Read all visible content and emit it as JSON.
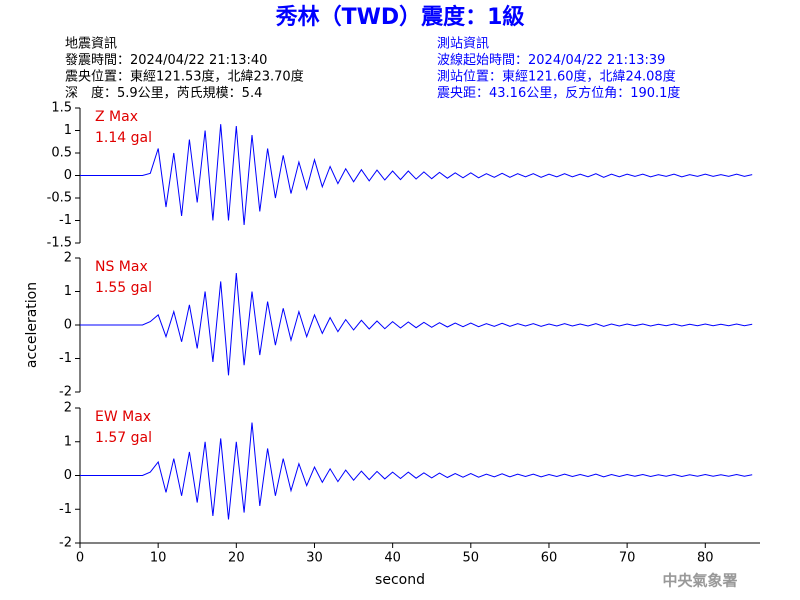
{
  "title": "秀林（TWD）震度：1級",
  "earthquake_info": [
    "地震資訊",
    "發震時間：2024/04/22 21:13:40",
    "震央位置：東經121.53度，北緯23.70度",
    "深　度：5.9公里，芮氏規模：5.4"
  ],
  "station_info": [
    "測站資訊",
    "波線起始時間：2024/04/22 21:13:39",
    "測站位置：東經121.60度，北緯24.08度",
    "震央距：43.16公里，反方位角：190.1度"
  ],
  "footer": "中央氣象署",
  "chart_data": [
    {
      "type": "line",
      "label": "Z Max",
      "max_label": "1.14 gal",
      "color": "#0000ff",
      "xlim": [
        0,
        87
      ],
      "ylim": [
        -1.5,
        1.5
      ],
      "yticks": [
        1.5,
        1,
        0.5,
        0,
        -0.5,
        -1,
        -1.5
      ],
      "x": [
        0,
        1,
        2,
        3,
        4,
        5,
        6,
        7,
        8,
        9,
        10,
        11,
        12,
        13,
        14,
        15,
        16,
        17,
        18,
        19,
        20,
        21,
        22,
        23,
        24,
        25,
        26,
        27,
        28,
        29,
        30,
        31,
        32,
        33,
        34,
        35,
        36,
        37,
        38,
        39,
        40,
        41,
        42,
        43,
        44,
        45,
        46,
        47,
        48,
        49,
        50,
        51,
        52,
        53,
        54,
        55,
        56,
        57,
        58,
        59,
        60,
        61,
        62,
        63,
        64,
        65,
        66,
        67,
        68,
        69,
        70,
        71,
        72,
        73,
        74,
        75,
        76,
        77,
        78,
        79,
        80,
        81,
        82,
        83,
        84,
        85,
        86
      ],
      "values": [
        0,
        0,
        0,
        0,
        0,
        0,
        0,
        0,
        0,
        0.05,
        0.6,
        -0.7,
        0.5,
        -0.9,
        0.8,
        -0.6,
        1.0,
        -1.0,
        1.14,
        -1.0,
        1.1,
        -1.1,
        0.9,
        -0.8,
        0.6,
        -0.5,
        0.45,
        -0.4,
        0.3,
        -0.3,
        0.35,
        -0.25,
        0.2,
        -0.18,
        0.15,
        -0.14,
        0.13,
        -0.12,
        0.12,
        -0.1,
        0.1,
        -0.09,
        0.1,
        -0.08,
        0.08,
        -0.07,
        0.07,
        -0.06,
        0.06,
        -0.05,
        0.06,
        -0.05,
        0.04,
        -0.04,
        0.05,
        -0.04,
        0.04,
        -0.03,
        0.04,
        -0.04,
        0.03,
        -0.03,
        0.04,
        -0.03,
        0.03,
        -0.03,
        0.04,
        -0.04,
        0.03,
        -0.03,
        0.03,
        -0.02,
        0.03,
        -0.03,
        0.02,
        -0.02,
        0.03,
        -0.03,
        0.02,
        -0.02,
        0.03,
        -0.02,
        0.02,
        -0.02,
        0.03,
        -0.02,
        0.02
      ]
    },
    {
      "type": "line",
      "label": "NS Max",
      "max_label": "1.55 gal",
      "color": "#0000ff",
      "ylabel": "acceleration",
      "xlim": [
        0,
        87
      ],
      "ylim": [
        -2,
        2
      ],
      "yticks": [
        2,
        1,
        0,
        -1,
        -2
      ],
      "x": [
        0,
        1,
        2,
        3,
        4,
        5,
        6,
        7,
        8,
        9,
        10,
        11,
        12,
        13,
        14,
        15,
        16,
        17,
        18,
        19,
        20,
        21,
        22,
        23,
        24,
        25,
        26,
        27,
        28,
        29,
        30,
        31,
        32,
        33,
        34,
        35,
        36,
        37,
        38,
        39,
        40,
        41,
        42,
        43,
        44,
        45,
        46,
        47,
        48,
        49,
        50,
        51,
        52,
        53,
        54,
        55,
        56,
        57,
        58,
        59,
        60,
        61,
        62,
        63,
        64,
        65,
        66,
        67,
        68,
        69,
        70,
        71,
        72,
        73,
        74,
        75,
        76,
        77,
        78,
        79,
        80,
        81,
        82,
        83,
        84,
        85,
        86
      ],
      "values": [
        0,
        0,
        0,
        0,
        0,
        0,
        0,
        0,
        0,
        0.1,
        0.3,
        -0.35,
        0.4,
        -0.5,
        0.6,
        -0.7,
        1.0,
        -1.1,
        1.3,
        -1.5,
        1.55,
        -1.2,
        1.0,
        -0.9,
        0.7,
        -0.6,
        0.5,
        -0.45,
        0.4,
        -0.35,
        0.3,
        -0.25,
        0.22,
        -0.2,
        0.16,
        -0.15,
        0.14,
        -0.12,
        0.12,
        -0.11,
        0.1,
        -0.09,
        0.09,
        -0.08,
        0.08,
        -0.07,
        0.07,
        -0.06,
        0.06,
        -0.05,
        0.06,
        -0.05,
        0.04,
        -0.04,
        0.05,
        -0.04,
        0.04,
        -0.03,
        0.04,
        -0.04,
        0.03,
        -0.03,
        0.04,
        -0.03,
        0.03,
        -0.03,
        0.04,
        -0.04,
        0.03,
        -0.03,
        0.03,
        -0.02,
        0.03,
        -0.03,
        0.02,
        -0.02,
        0.03,
        -0.03,
        0.02,
        -0.02,
        0.03,
        -0.02,
        0.02,
        -0.02,
        0.03,
        -0.02,
        0.02
      ]
    },
    {
      "type": "line",
      "label": "EW Max",
      "max_label": "1.57 gal",
      "color": "#0000ff",
      "xlabel": "second",
      "xlim": [
        0,
        87
      ],
      "xticks": [
        0,
        10,
        20,
        30,
        40,
        50,
        60,
        70,
        80
      ],
      "ylim": [
        -2,
        2
      ],
      "yticks": [
        2,
        1,
        0,
        -1,
        -2
      ],
      "x": [
        0,
        1,
        2,
        3,
        4,
        5,
        6,
        7,
        8,
        9,
        10,
        11,
        12,
        13,
        14,
        15,
        16,
        17,
        18,
        19,
        20,
        21,
        22,
        23,
        24,
        25,
        26,
        27,
        28,
        29,
        30,
        31,
        32,
        33,
        34,
        35,
        36,
        37,
        38,
        39,
        40,
        41,
        42,
        43,
        44,
        45,
        46,
        47,
        48,
        49,
        50,
        51,
        52,
        53,
        54,
        55,
        56,
        57,
        58,
        59,
        60,
        61,
        62,
        63,
        64,
        65,
        66,
        67,
        68,
        69,
        70,
        71,
        72,
        73,
        74,
        75,
        76,
        77,
        78,
        79,
        80,
        81,
        82,
        83,
        84,
        85,
        86
      ],
      "values": [
        0,
        0,
        0,
        0,
        0,
        0,
        0,
        0,
        0,
        0.1,
        0.4,
        -0.5,
        0.5,
        -0.6,
        0.7,
        -0.8,
        1.0,
        -1.2,
        1.1,
        -1.3,
        1.0,
        -1.1,
        1.57,
        -0.9,
        0.8,
        -0.6,
        0.5,
        -0.45,
        0.35,
        -0.3,
        0.25,
        -0.2,
        0.2,
        -0.18,
        0.16,
        -0.14,
        0.13,
        -0.12,
        0.12,
        -0.1,
        0.1,
        -0.09,
        0.1,
        -0.08,
        0.08,
        -0.07,
        0.07,
        -0.06,
        0.06,
        -0.05,
        0.06,
        -0.05,
        0.04,
        -0.04,
        0.05,
        -0.04,
        0.04,
        -0.03,
        0.04,
        -0.04,
        0.03,
        -0.03,
        0.04,
        -0.03,
        0.03,
        -0.03,
        0.04,
        -0.04,
        0.03,
        -0.03,
        0.03,
        -0.02,
        0.03,
        -0.03,
        0.02,
        -0.02,
        0.03,
        -0.03,
        0.02,
        -0.02,
        0.03,
        -0.02,
        0.02,
        -0.02,
        0.03,
        -0.02,
        0.02
      ]
    }
  ]
}
